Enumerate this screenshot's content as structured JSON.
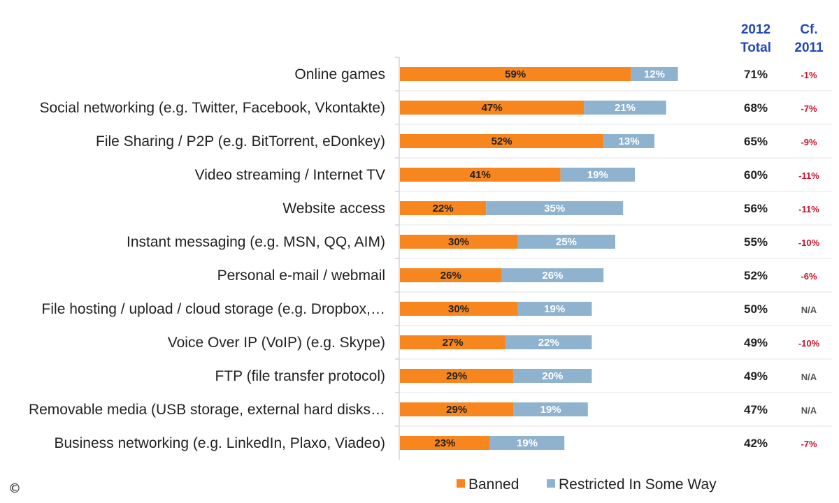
{
  "chart_data": {
    "type": "bar",
    "orientation": "horizontal",
    "stacked": true,
    "title": "",
    "xlabel": "",
    "ylabel": "",
    "xlim": [
      0,
      100
    ],
    "grid": false,
    "legend_position": "bottom",
    "categories": [
      "Online games",
      "Social networking (e.g. Twitter, Facebook, Vkontakte)",
      "File Sharing / P2P (e.g. BitTorrent, eDonkey)",
      "Video streaming / Internet TV",
      "Website access",
      "Instant messaging (e.g. MSN, QQ, AIM)",
      "Personal e-mail / webmail",
      "File hosting / upload / cloud storage (e.g. Dropbox,…",
      "Voice Over IP (VoIP) (e.g. Skype)",
      "FTP (file transfer protocol)",
      "Removable media (USB storage, external hard disks…",
      "Business networking (e.g. LinkedIn, Plaxo, Viadeo)"
    ],
    "series": [
      {
        "name": "Banned",
        "color": "#F7861F",
        "label_color": "#222222",
        "values": [
          59,
          47,
          52,
          41,
          22,
          30,
          26,
          30,
          27,
          29,
          29,
          23
        ]
      },
      {
        "name": "Restricted In Some Way",
        "color": "#8FB2CF",
        "label_color": "#ffffff",
        "values": [
          12,
          21,
          13,
          19,
          35,
          25,
          26,
          19,
          22,
          20,
          19,
          19
        ]
      }
    ],
    "columns": [
      {
        "header": [
          "2012",
          "Total"
        ],
        "header_color": "#2348B8",
        "color": "#222222",
        "values": [
          "71%",
          "68%",
          "65%",
          "60%",
          "56%",
          "55%",
          "52%",
          "50%",
          "49%",
          "49%",
          "47%",
          "42%"
        ]
      },
      {
        "header": [
          "Cf.",
          "2011"
        ],
        "header_color": "#2348B8",
        "values": [
          "-1%",
          "-7%",
          "-9%",
          "-11%",
          "-11%",
          "-10%",
          "-6%",
          "N/A",
          "-10%",
          "N/A",
          "N/A",
          "-7%"
        ],
        "colors": [
          "#D0102A",
          "#D0102A",
          "#D0102A",
          "#D0102A",
          "#D0102A",
          "#D0102A",
          "#D0102A",
          "#555555",
          "#D0102A",
          "#555555",
          "#555555",
          "#D0102A"
        ]
      }
    ],
    "copyright": "©"
  }
}
